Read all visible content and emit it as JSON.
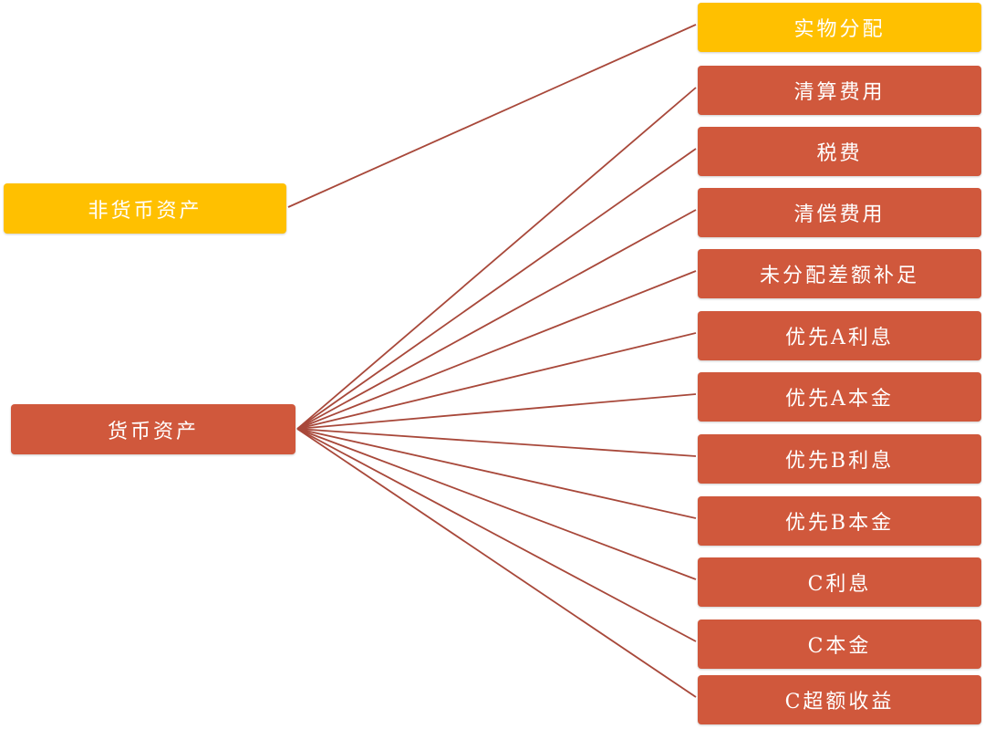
{
  "colors": {
    "yellow": "#FFC000",
    "red": "#D0583C",
    "line": "#A8483A"
  },
  "sources": [
    {
      "label": "非货币资产",
      "color": "yellow"
    },
    {
      "label": "货币资产",
      "color": "red"
    }
  ],
  "targets": [
    {
      "label": "实物分配",
      "color": "yellow",
      "from": 0
    },
    {
      "label": "清算费用",
      "color": "red",
      "from": 1
    },
    {
      "label": "税费",
      "color": "red",
      "from": 1
    },
    {
      "label": "清偿费用",
      "color": "red",
      "from": 1
    },
    {
      "label": "未分配差额补足",
      "color": "red",
      "from": 1
    },
    {
      "label": "优先A利息",
      "color": "red",
      "from": 1
    },
    {
      "label": "优先A本金",
      "color": "red",
      "from": 1
    },
    {
      "label": "优先B利息",
      "color": "red",
      "from": 1
    },
    {
      "label": "优先B本金",
      "color": "red",
      "from": 1
    },
    {
      "label": "C利息",
      "color": "red",
      "from": 1
    },
    {
      "label": "C本金",
      "color": "red",
      "from": 1
    },
    {
      "label": "C超额收益",
      "color": "red",
      "from": 1
    }
  ]
}
